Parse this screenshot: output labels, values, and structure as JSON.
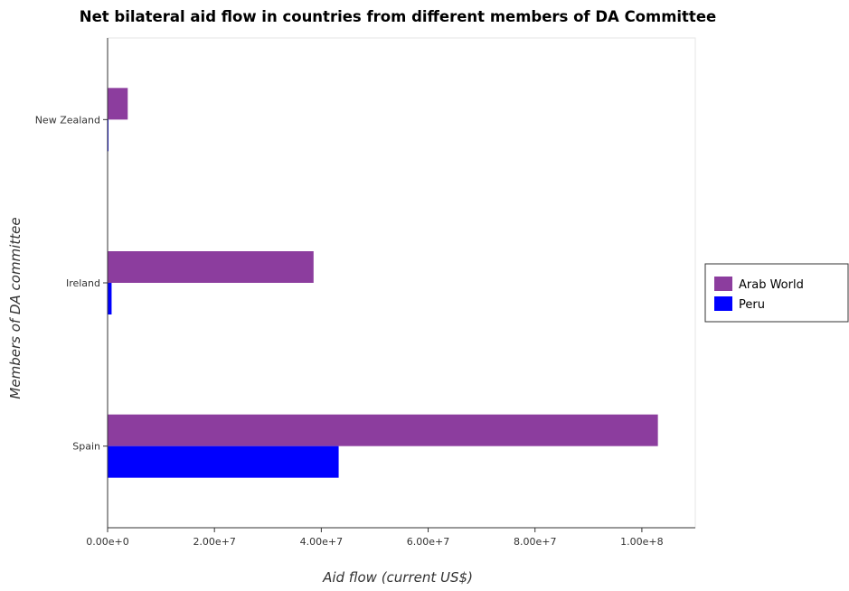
{
  "chart_data": {
    "type": "bar",
    "orientation": "horizontal",
    "title": "Net bilateral aid flow in countries from different members of DA Committee",
    "xlabel": "Aid flow (current US$)",
    "ylabel": "Members of DA committee",
    "categories": [
      "New Zealand",
      "Ireland",
      "Spain"
    ],
    "series": [
      {
        "name": "Arab World",
        "color": "#8c3d9e",
        "values": [
          3770000,
          38550000,
          103000000
        ]
      },
      {
        "name": "Peru",
        "color": "#0000ff",
        "values": [
          170000,
          750000,
          43250000
        ]
      }
    ],
    "xlim": [
      0,
      110000000
    ],
    "xticks": [
      0,
      20000000,
      40000000,
      60000000,
      80000000,
      100000000
    ],
    "xtick_labels": [
      "0.00e+0",
      "2.00e+7",
      "4.00e+7",
      "6.00e+7",
      "8.00e+7",
      "1.00e+8"
    ],
    "grid": false,
    "legend_position": "right"
  }
}
